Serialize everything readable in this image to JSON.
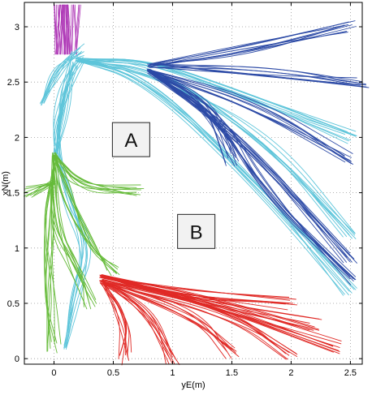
{
  "chart_data": {
    "type": "line",
    "title": "",
    "xlabel": "yE(m)",
    "ylabel": "xN(m)",
    "xlim": [
      -0.25,
      2.6
    ],
    "ylim": [
      -0.05,
      3.22
    ],
    "grid": true,
    "xticks": [
      "0",
      "0.5",
      "1",
      "1.5",
      "2",
      "2.5"
    ],
    "xtick_values": [
      0,
      0.5,
      1,
      1.5,
      2,
      2.5
    ],
    "yticks": [
      "0",
      "0.5",
      "1",
      "1.5",
      "2",
      "2.5",
      "3"
    ],
    "ytick_values": [
      0,
      0.5,
      1,
      1.5,
      2,
      2.5,
      3
    ],
    "region_labels": [
      {
        "text": "A",
        "x": 0.65,
        "y": 1.98
      },
      {
        "text": "B",
        "x": 1.2,
        "y": 1.15
      }
    ],
    "series": [
      {
        "color": "#b03cb8",
        "ys_yE": [
          0.0,
          0.2
        ],
        "xN_range": [
          2.75,
          3.2
        ]
      },
      {
        "color": "#5ec5da",
        "paths": [
          [
            [
              0.1,
              0.1
            ],
            [
              0.2,
              0.6
            ],
            [
              0.3,
              1.0
            ],
            [
              0.1,
              1.5
            ],
            [
              0.0,
              2.0
            ],
            [
              0.1,
              2.5
            ],
            [
              0.2,
              2.7
            ]
          ],
          [
            [
              0.2,
              2.7
            ],
            [
              0.8,
              2.7
            ],
            [
              1.6,
              2.4
            ],
            [
              2.5,
              2.0
            ]
          ],
          [
            [
              0.2,
              2.7
            ],
            [
              0.9,
              2.6
            ],
            [
              1.8,
              2.0
            ],
            [
              2.5,
              1.1
            ]
          ],
          [
            [
              0.2,
              2.7
            ],
            [
              0.8,
              2.55
            ],
            [
              1.7,
              1.6
            ],
            [
              2.5,
              0.6
            ]
          ],
          [
            [
              0.0,
              1.8
            ],
            [
              0.1,
              2.3
            ],
            [
              0.2,
              2.65
            ]
          ],
          [
            [
              -0.1,
              2.3
            ],
            [
              0.0,
              2.6
            ],
            [
              0.2,
              2.8
            ]
          ]
        ]
      },
      {
        "color": "#2c4aa6",
        "paths": [
          [
            [
              0.8,
              2.65
            ],
            [
              1.6,
              2.8
            ],
            [
              2.5,
              3.0
            ]
          ],
          [
            [
              0.8,
              2.65
            ],
            [
              1.8,
              2.6
            ],
            [
              2.6,
              2.5
            ]
          ],
          [
            [
              0.8,
              2.6
            ],
            [
              1.7,
              2.3
            ],
            [
              2.5,
              1.8
            ]
          ],
          [
            [
              0.8,
              2.6
            ],
            [
              1.6,
              2.0
            ],
            [
              2.5,
              0.9
            ]
          ],
          [
            [
              0.8,
              2.6
            ],
            [
              1.4,
              2.2
            ],
            [
              1.8,
              1.5
            ],
            [
              2.5,
              0.7
            ]
          ],
          [
            [
              0.8,
              2.6
            ],
            [
              1.3,
              2.3
            ],
            [
              1.5,
              1.8
            ]
          ]
        ]
      },
      {
        "color": "#66bb3a",
        "paths": [
          [
            [
              0.0,
              1.85
            ],
            [
              0.1,
              1.5
            ],
            [
              0.3,
              1.0
            ],
            [
              0.5,
              0.8
            ]
          ],
          [
            [
              0.0,
              1.85
            ],
            [
              0.0,
              1.2
            ],
            [
              0.2,
              0.8
            ],
            [
              0.3,
              0.5
            ]
          ],
          [
            [
              0.0,
              1.85
            ],
            [
              0.2,
              1.55
            ],
            [
              0.7,
              1.52
            ]
          ],
          [
            [
              0.0,
              1.7
            ],
            [
              -0.05,
              1.2
            ],
            [
              -0.05,
              0.6
            ],
            [
              0.0,
              0.1
            ]
          ],
          [
            [
              0.0,
              1.6
            ],
            [
              -0.2,
              1.5
            ]
          ]
        ]
      },
      {
        "color": "#e02a26",
        "paths": [
          [
            [
              0.4,
              0.75
            ],
            [
              1.0,
              0.6
            ],
            [
              2.0,
              0.5
            ]
          ],
          [
            [
              0.4,
              0.75
            ],
            [
              1.2,
              0.55
            ],
            [
              2.2,
              0.3
            ]
          ],
          [
            [
              0.4,
              0.75
            ],
            [
              1.3,
              0.5
            ],
            [
              2.4,
              0.1
            ]
          ],
          [
            [
              0.4,
              0.7
            ],
            [
              0.8,
              0.45
            ],
            [
              1.0,
              0.0
            ]
          ],
          [
            [
              0.4,
              0.7
            ],
            [
              0.6,
              0.35
            ],
            [
              0.6,
              0.0
            ]
          ],
          [
            [
              0.4,
              0.7
            ],
            [
              1.2,
              0.4
            ],
            [
              1.5,
              0.05
            ]
          ],
          [
            [
              0.4,
              0.7
            ],
            [
              1.5,
              0.4
            ],
            [
              2.0,
              0.0
            ]
          ]
        ]
      }
    ]
  }
}
